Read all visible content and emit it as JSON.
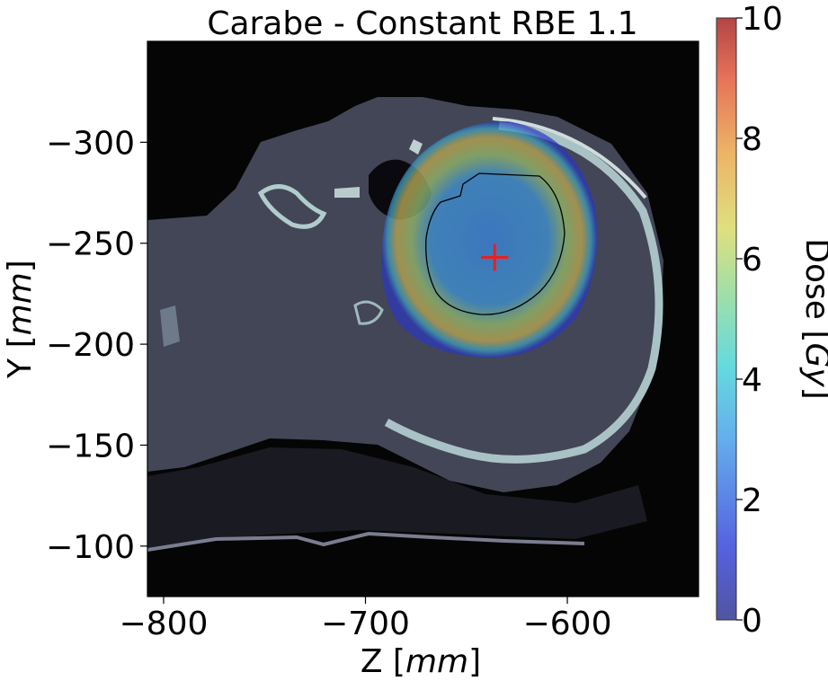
{
  "chart_data": {
    "type": "heatmap",
    "title": "Carabe - Constant RBE 1.1",
    "xlabel": {
      "prefix": "Z [",
      "unit": "mm",
      "suffix": "]"
    },
    "ylabel": {
      "prefix": "Y [",
      "unit": "mm",
      "suffix": "]"
    },
    "xlim": [
      -808,
      -535
    ],
    "ylim": [
      -350,
      -75
    ],
    "y_inverted": true,
    "xticks": [
      {
        "value": -800,
        "label": "−800"
      },
      {
        "value": -700,
        "label": "−700"
      },
      {
        "value": -600,
        "label": "−600"
      }
    ],
    "yticks": [
      {
        "value": -300,
        "label": "−300"
      },
      {
        "value": -250,
        "label": "−250"
      },
      {
        "value": -200,
        "label": "−200"
      },
      {
        "value": -150,
        "label": "−150"
      },
      {
        "value": -100,
        "label": "−100"
      }
    ],
    "colorbar": {
      "label": {
        "prefix": "Dose [",
        "unit": "Gy",
        "suffix": "]"
      },
      "min": 0,
      "max": 10,
      "colormap": "jet",
      "ticks": [
        {
          "value": 0,
          "label": "0"
        },
        {
          "value": 2,
          "label": "2"
        },
        {
          "value": 4,
          "label": "4"
        },
        {
          "value": 6,
          "label": "6"
        },
        {
          "value": 8,
          "label": "8"
        },
        {
          "value": 10,
          "label": "10"
        }
      ]
    },
    "target_marker": {
      "z": -636,
      "y": -243,
      "color": "#e8201c"
    },
    "dose_outer_level_gy": 0.5,
    "dose_peak_gy": 5.5,
    "background": "CT slice (grayscale)"
  }
}
